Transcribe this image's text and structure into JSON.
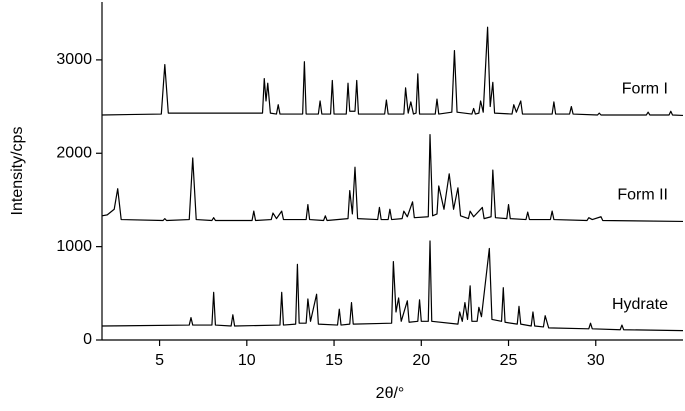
{
  "chart_data": {
    "type": "line",
    "x_label": "2θ/°",
    "y_label": "Intensity/cps",
    "xlim": [
      1.7,
      35
    ],
    "ylim": [
      0,
      3620
    ],
    "xticks": [
      5,
      10,
      15,
      20,
      25,
      30
    ],
    "yticks": [
      0,
      1000,
      2000,
      3000
    ],
    "series": [
      {
        "name": "Form I",
        "color": "#000000",
        "x": [
          1.7,
          5.1,
          5.3,
          5.5,
          10.9,
          11.0,
          11.1,
          11.2,
          11.35,
          11.7,
          11.8,
          11.9,
          13.2,
          13.3,
          13.4,
          14.1,
          14.2,
          14.3,
          14.8,
          14.9,
          15.0,
          15.7,
          15.8,
          15.9,
          16.2,
          16.3,
          16.4,
          17.9,
          18.0,
          18.1,
          19.0,
          19.1,
          19.25,
          19.4,
          19.55,
          19.7,
          19.8,
          19.9,
          20.8,
          20.9,
          21.0,
          21.75,
          21.9,
          22.05,
          22.9,
          23.0,
          23.1,
          23.3,
          23.4,
          23.55,
          23.8,
          23.95,
          24.1,
          24.2,
          25.2,
          25.3,
          25.45,
          25.7,
          25.8,
          27.5,
          27.6,
          27.7,
          28.5,
          28.6,
          28.7,
          30.1,
          30.2,
          30.3,
          32.9,
          33.0,
          33.1,
          34.2,
          34.3,
          34.4,
          35
        ],
        "values": [
          2410,
          2420,
          2950,
          2430,
          2430,
          2800,
          2560,
          2750,
          2430,
          2420,
          2520,
          2420,
          2420,
          2980,
          2420,
          2420,
          2560,
          2420,
          2420,
          2780,
          2420,
          2420,
          2750,
          2450,
          2450,
          2780,
          2420,
          2420,
          2570,
          2420,
          2420,
          2700,
          2430,
          2550,
          2420,
          2430,
          2850,
          2420,
          2420,
          2580,
          2420,
          2440,
          3100,
          2440,
          2420,
          2480,
          2420,
          2430,
          2560,
          2440,
          3350,
          2500,
          2760,
          2430,
          2420,
          2520,
          2440,
          2560,
          2420,
          2420,
          2550,
          2420,
          2420,
          2500,
          2420,
          2410,
          2430,
          2410,
          2410,
          2440,
          2410,
          2410,
          2450,
          2410,
          2405
        ]
      },
      {
        "name": "Form II",
        "color": "#000000",
        "x": [
          1.7,
          2.0,
          2.4,
          2.6,
          2.8,
          5.2,
          5.3,
          5.4,
          6.7,
          6.9,
          7.1,
          8.0,
          8.1,
          8.2,
          10.3,
          10.4,
          10.5,
          11.4,
          11.5,
          11.7,
          12.0,
          12.1,
          13.4,
          13.5,
          13.6,
          14.4,
          14.5,
          14.6,
          15.8,
          15.9,
          16.05,
          16.2,
          16.35,
          17.5,
          17.6,
          17.7,
          18.1,
          18.2,
          18.3,
          18.9,
          19.0,
          19.2,
          19.5,
          19.6,
          20.4,
          20.5,
          20.65,
          20.9,
          21.0,
          21.3,
          21.6,
          21.85,
          22.1,
          22.25,
          22.7,
          22.8,
          23.0,
          23.5,
          23.6,
          24.0,
          24.1,
          24.25,
          24.9,
          25.0,
          25.1,
          26.0,
          26.1,
          26.2,
          27.4,
          27.5,
          27.6,
          29.5,
          29.6,
          29.8,
          30.3,
          30.4,
          35
        ],
        "values": [
          1330,
          1340,
          1400,
          1620,
          1290,
          1280,
          1300,
          1280,
          1290,
          1950,
          1290,
          1280,
          1310,
          1280,
          1280,
          1380,
          1280,
          1290,
          1360,
          1300,
          1380,
          1290,
          1290,
          1450,
          1290,
          1280,
          1330,
          1280,
          1300,
          1600,
          1350,
          1850,
          1300,
          1290,
          1420,
          1290,
          1290,
          1400,
          1290,
          1300,
          1380,
          1320,
          1480,
          1310,
          1320,
          2200,
          1330,
          1350,
          1650,
          1400,
          1780,
          1400,
          1630,
          1330,
          1300,
          1380,
          1320,
          1420,
          1300,
          1320,
          1820,
          1310,
          1300,
          1450,
          1300,
          1290,
          1370,
          1290,
          1290,
          1380,
          1290,
          1280,
          1310,
          1290,
          1320,
          1280,
          1270
        ]
      },
      {
        "name": "Hydrate",
        "color": "#000000",
        "x": [
          1.7,
          6.7,
          6.8,
          6.9,
          8.0,
          8.1,
          8.2,
          9.1,
          9.2,
          9.3,
          11.9,
          12.0,
          12.1,
          12.8,
          12.9,
          13.0,
          13.4,
          13.5,
          13.65,
          14.0,
          14.1,
          15.2,
          15.3,
          15.4,
          15.9,
          16.0,
          16.1,
          18.3,
          18.4,
          18.55,
          18.7,
          18.85,
          19.2,
          19.3,
          19.8,
          19.9,
          20.0,
          20.4,
          20.5,
          20.6,
          22.1,
          22.2,
          22.35,
          22.5,
          22.65,
          22.8,
          22.9,
          23.2,
          23.3,
          23.45,
          23.9,
          24.05,
          24.6,
          24.7,
          24.8,
          25.5,
          25.6,
          25.7,
          26.3,
          26.4,
          26.5,
          27.0,
          27.1,
          27.3,
          29.6,
          29.7,
          29.8,
          31.4,
          31.5,
          31.6,
          35
        ],
        "values": [
          150,
          160,
          240,
          160,
          160,
          510,
          160,
          150,
          270,
          150,
          160,
          510,
          160,
          170,
          810,
          180,
          180,
          440,
          200,
          490,
          170,
          160,
          330,
          160,
          170,
          400,
          170,
          180,
          840,
          300,
          450,
          200,
          420,
          190,
          200,
          430,
          200,
          200,
          1060,
          200,
          170,
          300,
          200,
          400,
          220,
          580,
          200,
          200,
          350,
          250,
          980,
          220,
          200,
          560,
          190,
          170,
          360,
          170,
          150,
          300,
          150,
          140,
          260,
          130,
          120,
          180,
          120,
          110,
          160,
          110,
          100
        ]
      }
    ]
  }
}
